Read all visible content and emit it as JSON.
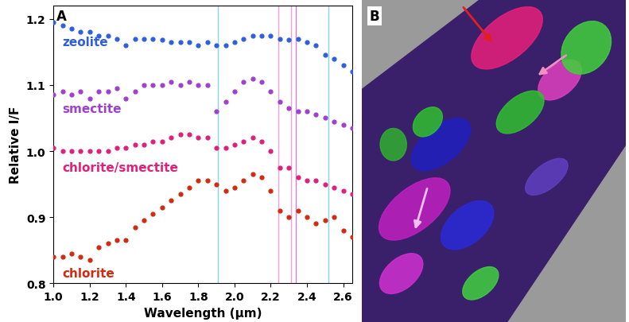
{
  "chart_data": {
    "type": "scatter",
    "x_label": "Wavelength (μm)",
    "y_label": "Relative I/F",
    "x": [
      1.0,
      1.05,
      1.1,
      1.15,
      1.2,
      1.25,
      1.3,
      1.35,
      1.4,
      1.45,
      1.5,
      1.55,
      1.6,
      1.65,
      1.7,
      1.75,
      1.8,
      1.85,
      1.9,
      1.95,
      2.0,
      2.05,
      2.1,
      2.15,
      2.2,
      2.25,
      2.3,
      2.35,
      2.4,
      2.45,
      2.5,
      2.55,
      2.6,
      2.65
    ],
    "series": [
      {
        "name": "zeolite",
        "color": "#2e5fe0",
        "marker": "circle",
        "values": [
          1.195,
          1.19,
          1.185,
          1.18,
          1.18,
          1.175,
          1.175,
          1.17,
          1.16,
          1.17,
          1.17,
          1.17,
          1.168,
          1.165,
          1.165,
          1.165,
          1.16,
          1.165,
          1.16,
          1.16,
          1.165,
          1.17,
          1.175,
          1.175,
          1.175,
          1.17,
          1.168,
          1.17,
          1.165,
          1.16,
          1.145,
          1.14,
          1.13,
          1.12
        ]
      },
      {
        "name": "smectite",
        "color": "#a040d0",
        "marker": "circle",
        "values": [
          1.085,
          1.09,
          1.085,
          1.09,
          1.08,
          1.09,
          1.09,
          1.095,
          1.08,
          1.09,
          1.1,
          1.1,
          1.1,
          1.105,
          1.1,
          1.105,
          1.1,
          1.1,
          1.06,
          1.075,
          1.09,
          1.105,
          1.11,
          1.105,
          1.09,
          1.075,
          1.065,
          1.06,
          1.06,
          1.055,
          1.05,
          1.045,
          1.04,
          1.035
        ]
      },
      {
        "name": "chlorite/smectite",
        "color": "#e0207a",
        "marker": "circle",
        "values": [
          1.005,
          1.0,
          1.0,
          1.0,
          1.0,
          1.0,
          1.0,
          1.005,
          1.005,
          1.01,
          1.01,
          1.015,
          1.015,
          1.02,
          1.025,
          1.025,
          1.02,
          1.02,
          1.005,
          1.005,
          1.01,
          1.015,
          1.02,
          1.015,
          1.0,
          0.975,
          0.975,
          0.96,
          0.955,
          0.955,
          0.95,
          0.945,
          0.94,
          0.935
        ]
      },
      {
        "name": "chlorite",
        "color": "#d42a10",
        "marker": "circle",
        "values": [
          0.84,
          0.84,
          0.845,
          0.84,
          0.835,
          0.855,
          0.86,
          0.865,
          0.865,
          0.885,
          0.895,
          0.905,
          0.915,
          0.925,
          0.935,
          0.945,
          0.955,
          0.955,
          0.95,
          0.94,
          0.945,
          0.955,
          0.965,
          0.96,
          0.94,
          0.91,
          0.9,
          0.91,
          0.9,
          0.89,
          0.895,
          0.9,
          0.88,
          0.87
        ]
      }
    ],
    "reference_lines": [
      {
        "x": 1.91,
        "color": "#7fd8ee"
      },
      {
        "x": 2.24,
        "color": "#f0a0d0"
      },
      {
        "x": 2.31,
        "color": "#f0a0d0"
      },
      {
        "x": 2.34,
        "color": "#d080d0"
      },
      {
        "x": 2.52,
        "color": "#7fd8ee"
      }
    ],
    "xlim": [
      1.0,
      2.65
    ],
    "xticks": [
      1.0,
      1.2,
      1.4,
      1.6,
      1.8,
      2.0,
      2.2,
      2.4,
      2.6
    ],
    "ylim": [
      0.8,
      1.22
    ],
    "yticks": [
      0.8,
      0.9,
      1.0,
      1.1,
      1.2
    ],
    "grid": false
  },
  "panel_labels": [
    "A",
    "B"
  ]
}
